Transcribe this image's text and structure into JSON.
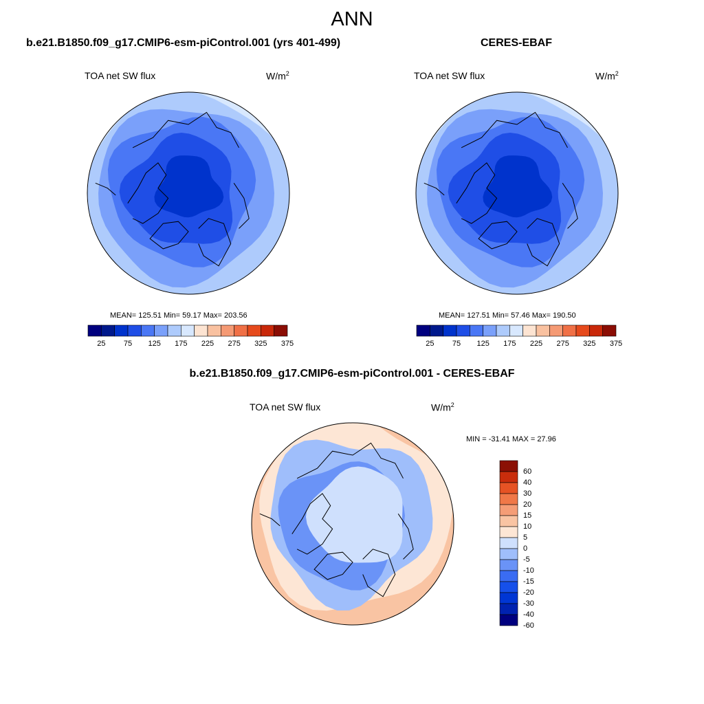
{
  "page": {
    "title": "ANN"
  },
  "colors": {
    "seq": [
      "#00007f",
      "#00198c",
      "#0033cc",
      "#1f4ee6",
      "#4a77f5",
      "#7aa0fa",
      "#aecbfc",
      "#d8e8fe",
      "#fde4d2",
      "#f9c1a0",
      "#f59a74",
      "#f07046",
      "#e64a1c",
      "#c9280a",
      "#8b0d04"
    ],
    "diff": [
      "#00007f",
      "#0022b0",
      "#0036d4",
      "#1650ea",
      "#3a6cf2",
      "#6a93f7",
      "#9fbefb",
      "#cfe0fd",
      "#fde6d5",
      "#f9c4a3",
      "#f59d76",
      "#f07848",
      "#e65324",
      "#c92d0c",
      "#8b1004"
    ],
    "coast": "#000000"
  },
  "panels": [
    {
      "title": "b.e21.B1850.f09_g17.CMIP6-esm-piControl.001 (yrs 401-499)",
      "variable": "TOA net SW flux",
      "unit_base": "W/m",
      "unit_exp": "2",
      "stats": "MEAN= 125.51  Min=  59.17  Max= 203.56",
      "colorbar_ticks": [
        "25",
        "75",
        "125",
        "175",
        "225",
        "275",
        "325",
        "375"
      ]
    },
    {
      "title": "CERES-EBAF",
      "variable": "TOA net SW flux",
      "unit_base": "W/m",
      "unit_exp": "2",
      "stats": "MEAN= 127.51  Min=  57.46  Max= 190.50",
      "colorbar_ticks": [
        "25",
        "75",
        "125",
        "175",
        "225",
        "275",
        "325",
        "375"
      ]
    },
    {
      "title": "b.e21.B1850.f09_g17.CMIP6-esm-piControl.001 - CERES-EBAF",
      "variable": "TOA net SW flux",
      "unit_base": "W/m",
      "unit_exp": "2",
      "stats": "MIN = -31.41 MAX =  27.96",
      "colorbar_ticks": [
        "60",
        "40",
        "30",
        "20",
        "15",
        "10",
        "5",
        "0",
        "-5",
        "-10",
        "-15",
        "-20",
        "-30",
        "-40",
        "-60"
      ]
    }
  ]
}
